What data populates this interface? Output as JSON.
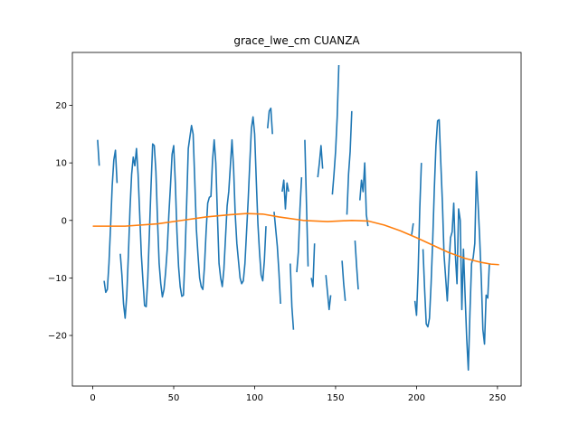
{
  "chart_data": {
    "type": "line",
    "title": "grace_lwe_cm CUANZA",
    "xlabel": "",
    "ylabel": "",
    "xlim": [
      -12.6,
      264.6
    ],
    "ylim": [
      -28.8,
      29.2
    ],
    "xticks": [
      0,
      50,
      100,
      150,
      200,
      250
    ],
    "yticks": [
      -20,
      -10,
      0,
      10,
      20
    ],
    "grid": false,
    "legend": "none",
    "series": [
      {
        "color": "#1f77b4",
        "segments": [
          [
            [
              3,
              14.0
            ],
            [
              4,
              9.5
            ]
          ],
          [
            [
              7,
              -10.5
            ],
            [
              8,
              -12.5
            ],
            [
              9,
              -12.0
            ],
            [
              10,
              -7.5
            ],
            [
              11,
              -1.0
            ],
            [
              12,
              6.0
            ],
            [
              13,
              10.5
            ],
            [
              14,
              12.2
            ],
            [
              15,
              6.5
            ]
          ],
          [
            [
              17,
              -5.8
            ],
            [
              18,
              -9.5
            ],
            [
              19,
              -14.5
            ],
            [
              20,
              -17.0
            ],
            [
              21,
              -13.0
            ],
            [
              22,
              -6.0
            ],
            [
              23,
              2.0
            ],
            [
              24,
              8.0
            ],
            [
              25,
              11.0
            ],
            [
              26,
              9.5
            ],
            [
              27,
              12.5
            ],
            [
              28,
              8.0
            ],
            [
              29,
              1.0
            ],
            [
              30,
              -6.0
            ],
            [
              31,
              -10.5
            ],
            [
              32,
              -14.8
            ],
            [
              33,
              -15.0
            ],
            [
              34,
              -10.0
            ],
            [
              35,
              -2.0
            ],
            [
              36,
              6.0
            ],
            [
              37,
              13.3
            ],
            [
              38,
              13.0
            ],
            [
              39,
              8.5
            ],
            [
              40,
              0.0
            ],
            [
              41,
              -7.5
            ],
            [
              42,
              -11.0
            ],
            [
              43,
              -13.3
            ],
            [
              44,
              -12.0
            ],
            [
              45,
              -9.0
            ],
            [
              46,
              -5.0
            ],
            [
              47,
              1.0
            ],
            [
              48,
              6.0
            ],
            [
              49,
              11.5
            ],
            [
              50,
              13.0
            ],
            [
              51,
              6.5
            ],
            [
              52,
              -2.0
            ],
            [
              53,
              -8.0
            ],
            [
              54,
              -11.5
            ],
            [
              55,
              -13.2
            ],
            [
              56,
              -13.0
            ],
            [
              57,
              -6.0
            ],
            [
              58,
              3.0
            ],
            [
              59,
              12.5
            ],
            [
              60,
              14.5
            ],
            [
              61,
              16.5
            ],
            [
              62,
              15.0
            ],
            [
              63,
              7.0
            ],
            [
              64,
              -1.5
            ],
            [
              65,
              -6.0
            ],
            [
              66,
              -10.0
            ],
            [
              67,
              -11.5
            ],
            [
              68,
              -12.0
            ],
            [
              69,
              -8.0
            ],
            [
              70,
              -2.0
            ],
            [
              71,
              3.0
            ],
            [
              72,
              4.0
            ],
            [
              73,
              4.2
            ],
            [
              74,
              10.5
            ],
            [
              75,
              14.0
            ],
            [
              76,
              10.0
            ],
            [
              77,
              1.0
            ],
            [
              78,
              -7.5
            ],
            [
              79,
              -10.0
            ],
            [
              80,
              -11.5
            ],
            [
              81,
              -8.5
            ],
            [
              82,
              -3.0
            ],
            [
              83,
              2.5
            ],
            [
              84,
              5.0
            ],
            [
              85,
              9.5
            ],
            [
              86,
              14.0
            ],
            [
              87,
              9.0
            ],
            [
              88,
              1.0
            ],
            [
              89,
              -4.0
            ],
            [
              90,
              -7.0
            ],
            [
              91,
              -10.0
            ],
            [
              92,
              -11.0
            ],
            [
              93,
              -10.5
            ],
            [
              94,
              -7.5
            ],
            [
              95,
              -2.0
            ],
            [
              96,
              3.5
            ],
            [
              97,
              10.0
            ],
            [
              98,
              16.0
            ],
            [
              99,
              18.0
            ],
            [
              100,
              15.0
            ],
            [
              101,
              7.0
            ],
            [
              102,
              -0.5
            ],
            [
              103,
              -5.5
            ],
            [
              104,
              -9.5
            ],
            [
              105,
              -10.5
            ],
            [
              106,
              -7.0
            ],
            [
              107,
              -1.0
            ]
          ],
          [
            [
              108,
              16.0
            ],
            [
              109,
              19.0
            ],
            [
              110,
              19.5
            ],
            [
              111,
              15.0
            ]
          ],
          [
            [
              112,
              1.5
            ],
            [
              113,
              -1.5
            ],
            [
              114,
              -4.5
            ],
            [
              115,
              -9.0
            ],
            [
              116,
              -14.5
            ]
          ],
          [
            [
              117,
              5.0
            ],
            [
              118,
              7.0
            ],
            [
              119,
              2.0
            ],
            [
              120,
              6.5
            ],
            [
              121,
              5.0
            ]
          ],
          [
            [
              122,
              -7.5
            ],
            [
              123,
              -15.0
            ],
            [
              124,
              -19.0
            ]
          ],
          [
            [
              126,
              -9.0
            ],
            [
              127,
              -5.5
            ],
            [
              128,
              2.0
            ],
            [
              129,
              7.5
            ]
          ],
          [
            [
              131,
              14.0
            ],
            [
              132,
              3.0
            ],
            [
              133,
              -8.0
            ]
          ],
          [
            [
              135,
              -10.0
            ],
            [
              136,
              -11.5
            ],
            [
              137,
              -4.0
            ]
          ],
          [
            [
              139,
              7.5
            ],
            [
              140,
              10.0
            ],
            [
              141,
              13.0
            ],
            [
              142,
              9.0
            ]
          ],
          [
            [
              144,
              -9.5
            ],
            [
              145,
              -12.5
            ],
            [
              146,
              -15.5
            ],
            [
              147,
              -13.0
            ]
          ],
          [
            [
              148,
              4.5
            ],
            [
              149,
              8.0
            ],
            [
              150,
              12.0
            ],
            [
              151,
              18.0
            ],
            [
              152,
              27.0
            ]
          ],
          [
            [
              154,
              -7.0
            ],
            [
              155,
              -11.0
            ],
            [
              156,
              -14.0
            ]
          ],
          [
            [
              157,
              1.0
            ],
            [
              158,
              8.0
            ],
            [
              159,
              12.0
            ],
            [
              160,
              19.0
            ]
          ],
          [
            [
              162,
              -3.5
            ],
            [
              163,
              -8.0
            ],
            [
              164,
              -12.0
            ]
          ],
          [
            [
              165,
              3.5
            ],
            [
              166,
              7.0
            ],
            [
              167,
              5.0
            ],
            [
              168,
              10.0
            ],
            [
              169,
              1.0
            ],
            [
              170,
              -1.0
            ]
          ],
          [
            [
              197,
              -2.5
            ],
            [
              198,
              -0.5
            ]
          ],
          [
            [
              199,
              -14.0
            ],
            [
              200,
              -16.5
            ],
            [
              201,
              -9.0
            ],
            [
              202,
              2.0
            ],
            [
              203,
              10.0
            ]
          ],
          [
            [
              204,
              -5.0
            ],
            [
              205,
              -12.0
            ],
            [
              206,
              -18.0
            ],
            [
              207,
              -18.5
            ],
            [
              208,
              -17.0
            ],
            [
              209,
              -11.0
            ],
            [
              210,
              -3.5
            ],
            [
              211,
              5.5
            ],
            [
              212,
              13.0
            ],
            [
              213,
              17.3
            ],
            [
              214,
              17.5
            ],
            [
              215,
              10.0
            ],
            [
              216,
              3.0
            ],
            [
              217,
              -6.0
            ],
            [
              218,
              -10.0
            ],
            [
              219,
              -14.0
            ],
            [
              220,
              -8.0
            ],
            [
              221,
              -3.0
            ],
            [
              222,
              -2.0
            ],
            [
              223,
              3.0
            ],
            [
              224,
              -6.0
            ],
            [
              225,
              -11.0
            ],
            [
              226,
              2.0
            ],
            [
              227,
              0.0
            ],
            [
              228,
              -15.5
            ],
            [
              229,
              -5.0
            ],
            [
              230,
              -13.0
            ],
            [
              231,
              -20.5
            ],
            [
              232,
              -26.0
            ],
            [
              233,
              -16.0
            ],
            [
              234,
              -7.5
            ],
            [
              235,
              -6.5
            ],
            [
              236,
              -4.0
            ],
            [
              237,
              8.5
            ],
            [
              238,
              3.0
            ],
            [
              239,
              -3.0
            ],
            [
              240,
              -10.0
            ],
            [
              241,
              -19.0
            ],
            [
              242,
              -21.5
            ],
            [
              243,
              -13.0
            ],
            [
              244,
              -13.5
            ],
            [
              245,
              -7.5
            ]
          ]
        ]
      },
      {
        "color": "#ff7f0e",
        "points": [
          [
            0,
            -1.0
          ],
          [
            20,
            -1.0
          ],
          [
            40,
            -0.6
          ],
          [
            55,
            0.0
          ],
          [
            70,
            0.6
          ],
          [
            85,
            1.0
          ],
          [
            95,
            1.2
          ],
          [
            105,
            1.1
          ],
          [
            115,
            0.6
          ],
          [
            130,
            0.0
          ],
          [
            145,
            -0.2
          ],
          [
            160,
            0.0
          ],
          [
            170,
            -0.1
          ],
          [
            180,
            -0.8
          ],
          [
            190,
            -1.8
          ],
          [
            200,
            -3.0
          ],
          [
            210,
            -4.3
          ],
          [
            220,
            -5.6
          ],
          [
            230,
            -6.6
          ],
          [
            240,
            -7.3
          ],
          [
            246,
            -7.6
          ],
          [
            251,
            -7.7
          ]
        ]
      }
    ]
  }
}
